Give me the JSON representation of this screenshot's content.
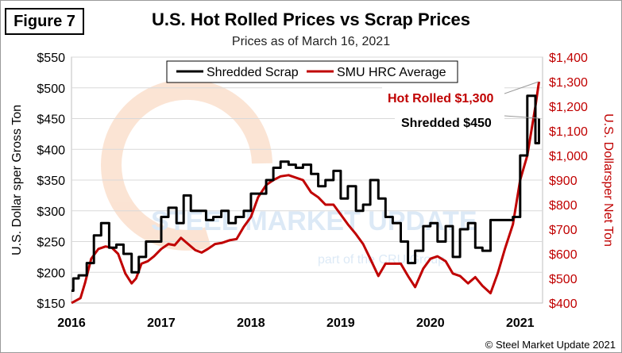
{
  "figure_label": "Figure 7",
  "copyright": "© Steel Market Update 2021",
  "watermark": {
    "main": "STEEL MARKET UPDATE",
    "sub": "part of the CRU Group"
  },
  "chart_data": {
    "type": "line",
    "title": "U.S. Hot Rolled Prices vs Scrap Prices",
    "subtitle": "Prices as of March 16, 2021",
    "ylabel_left": "U.S. Dollar sper Gross Ton",
    "ylabel_right": "U.S. Dollarsper Net Ton",
    "xlim": [
      2016,
      2021.25
    ],
    "ylim_left": [
      150,
      550
    ],
    "ylim_right": [
      400,
      1400
    ],
    "x_ticks": [
      2016,
      2017,
      2018,
      2019,
      2020,
      2021
    ],
    "x_tick_labels": [
      "2016",
      "2017",
      "2018",
      "2019",
      "2020",
      "2021"
    ],
    "y_left_ticks": [
      150,
      200,
      250,
      300,
      350,
      400,
      450,
      500,
      550
    ],
    "y_left_tick_labels": [
      "$150",
      "$200",
      "$250",
      "$300",
      "$350",
      "$400",
      "$450",
      "$500",
      "$550"
    ],
    "y_right_ticks": [
      400,
      500,
      600,
      700,
      800,
      900,
      1000,
      1100,
      1200,
      1300,
      1400
    ],
    "y_right_tick_labels": [
      "$400",
      "$500",
      "$600",
      "$700",
      "$800",
      "$900",
      "$1,000",
      "$1,100",
      "$1,200",
      "$1,300",
      "$1,400"
    ],
    "grid": "horizontal",
    "legend_position": "top-center",
    "series": [
      {
        "name": "Shredded Scrap",
        "axis": "left",
        "color": "#000000",
        "step": true,
        "points": [
          [
            2016.0,
            170
          ],
          [
            2016.02,
            190
          ],
          [
            2016.08,
            195
          ],
          [
            2016.17,
            215
          ],
          [
            2016.25,
            260
          ],
          [
            2016.33,
            280
          ],
          [
            2016.42,
            240
          ],
          [
            2016.5,
            245
          ],
          [
            2016.58,
            230
          ],
          [
            2016.67,
            200
          ],
          [
            2016.75,
            225
          ],
          [
            2016.83,
            250
          ],
          [
            2016.92,
            250
          ],
          [
            2017.0,
            290
          ],
          [
            2017.08,
            305
          ],
          [
            2017.17,
            280
          ],
          [
            2017.25,
            325
          ],
          [
            2017.33,
            300
          ],
          [
            2017.42,
            300
          ],
          [
            2017.5,
            285
          ],
          [
            2017.58,
            290
          ],
          [
            2017.67,
            300
          ],
          [
            2017.75,
            280
          ],
          [
            2017.83,
            290
          ],
          [
            2017.92,
            300
          ],
          [
            2018.0,
            328
          ],
          [
            2018.08,
            328
          ],
          [
            2018.17,
            350
          ],
          [
            2018.25,
            370
          ],
          [
            2018.33,
            380
          ],
          [
            2018.42,
            375
          ],
          [
            2018.5,
            370
          ],
          [
            2018.58,
            375
          ],
          [
            2018.67,
            360
          ],
          [
            2018.75,
            340
          ],
          [
            2018.83,
            350
          ],
          [
            2018.92,
            365
          ],
          [
            2019.0,
            320
          ],
          [
            2019.08,
            340
          ],
          [
            2019.17,
            300
          ],
          [
            2019.25,
            310
          ],
          [
            2019.33,
            350
          ],
          [
            2019.42,
            320
          ],
          [
            2019.5,
            290
          ],
          [
            2019.58,
            280
          ],
          [
            2019.67,
            250
          ],
          [
            2019.75,
            215
          ],
          [
            2019.83,
            235
          ],
          [
            2019.92,
            275
          ],
          [
            2020.0,
            280
          ],
          [
            2020.08,
            250
          ],
          [
            2020.17,
            275
          ],
          [
            2020.25,
            225
          ],
          [
            2020.33,
            270
          ],
          [
            2020.42,
            280
          ],
          [
            2020.5,
            240
          ],
          [
            2020.58,
            235
          ],
          [
            2020.67,
            285
          ],
          [
            2020.75,
            285
          ],
          [
            2020.83,
            285
          ],
          [
            2020.92,
            290
          ],
          [
            2021.0,
            390
          ],
          [
            2021.08,
            487
          ],
          [
            2021.17,
            410
          ],
          [
            2021.21,
            450
          ]
        ]
      },
      {
        "name": "SMU HRC Average",
        "axis": "right",
        "color": "#c00000",
        "step": false,
        "points": [
          [
            2016.0,
            400
          ],
          [
            2016.05,
            410
          ],
          [
            2016.1,
            420
          ],
          [
            2016.15,
            480
          ],
          [
            2016.22,
            580
          ],
          [
            2016.3,
            620
          ],
          [
            2016.38,
            630
          ],
          [
            2016.45,
            625
          ],
          [
            2016.52,
            600
          ],
          [
            2016.6,
            520
          ],
          [
            2016.67,
            480
          ],
          [
            2016.72,
            500
          ],
          [
            2016.78,
            560
          ],
          [
            2016.85,
            570
          ],
          [
            2016.92,
            590
          ],
          [
            2017.0,
            620
          ],
          [
            2017.08,
            640
          ],
          [
            2017.15,
            635
          ],
          [
            2017.22,
            665
          ],
          [
            2017.3,
            640
          ],
          [
            2017.38,
            615
          ],
          [
            2017.45,
            605
          ],
          [
            2017.52,
            620
          ],
          [
            2017.6,
            640
          ],
          [
            2017.68,
            645
          ],
          [
            2017.76,
            655
          ],
          [
            2017.84,
            660
          ],
          [
            2017.92,
            710
          ],
          [
            2018.0,
            750
          ],
          [
            2018.08,
            830
          ],
          [
            2018.17,
            880
          ],
          [
            2018.25,
            900
          ],
          [
            2018.33,
            915
          ],
          [
            2018.42,
            920
          ],
          [
            2018.5,
            910
          ],
          [
            2018.58,
            900
          ],
          [
            2018.67,
            850
          ],
          [
            2018.75,
            830
          ],
          [
            2018.83,
            800
          ],
          [
            2018.92,
            800
          ],
          [
            2019.0,
            760
          ],
          [
            2019.08,
            720
          ],
          [
            2019.17,
            680
          ],
          [
            2019.25,
            640
          ],
          [
            2019.33,
            580
          ],
          [
            2019.42,
            510
          ],
          [
            2019.5,
            560
          ],
          [
            2019.58,
            560
          ],
          [
            2019.67,
            560
          ],
          [
            2019.75,
            510
          ],
          [
            2019.83,
            465
          ],
          [
            2019.92,
            540
          ],
          [
            2020.0,
            580
          ],
          [
            2020.08,
            590
          ],
          [
            2020.17,
            570
          ],
          [
            2020.25,
            520
          ],
          [
            2020.33,
            510
          ],
          [
            2020.42,
            480
          ],
          [
            2020.5,
            505
          ],
          [
            2020.58,
            470
          ],
          [
            2020.67,
            440
          ],
          [
            2020.75,
            520
          ],
          [
            2020.83,
            620
          ],
          [
            2020.92,
            720
          ],
          [
            2021.0,
            900
          ],
          [
            2021.08,
            1000
          ],
          [
            2021.17,
            1200
          ],
          [
            2021.21,
            1300
          ]
        ]
      }
    ],
    "annotations": [
      {
        "text": "Hot Rolled $1,300",
        "color": "#c00000",
        "points_to": [
          2021.21,
          1300
        ],
        "axis": "right"
      },
      {
        "text": "Shredded $450",
        "color": "#000000",
        "points_to": [
          2021.21,
          450
        ],
        "axis": "left"
      }
    ]
  }
}
